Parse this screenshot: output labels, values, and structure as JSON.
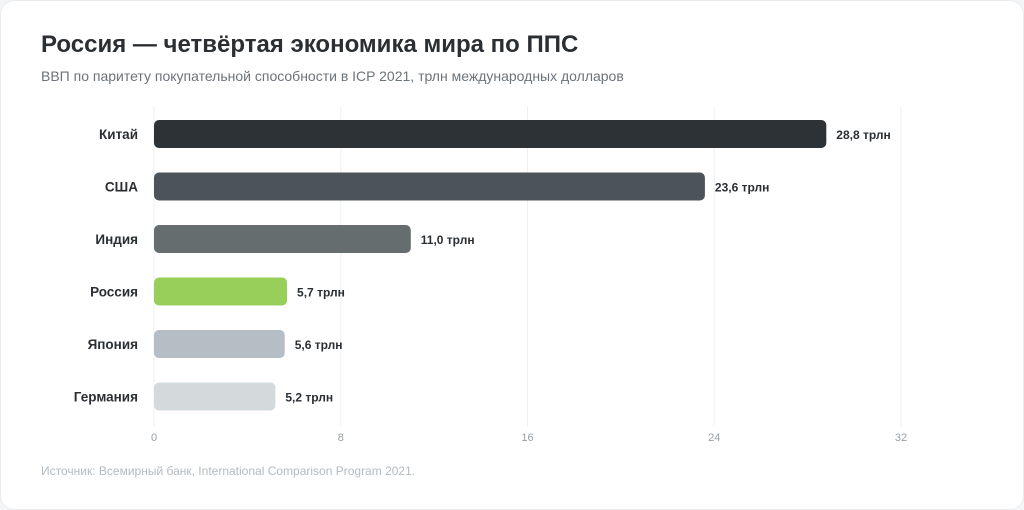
{
  "header": {
    "title": "Россия — четвёртая экономика мира по ППС",
    "subtitle": "ВВП по паритету покупательной способности в ICP 2021, трлн международных долларов"
  },
  "footer": {
    "source": "Источник: Всемирный банк, International Comparison Program 2021."
  },
  "colors": {
    "Китай": "#2c3235",
    "США": "#4d5459",
    "Индия": "#656d6f",
    "Россия": "#97cf5a",
    "Япония": "#b5bec4",
    "Германия": "#d4d9dc",
    "grid": "#edf0f2",
    "tick_label": "#98a0a7",
    "category_label": "#2b2f33",
    "value_label": "#2b2f33"
  },
  "chart_data": {
    "type": "bar",
    "orientation": "horizontal",
    "categories": [
      "Китай",
      "США",
      "Индия",
      "Россия",
      "Япония",
      "Германия"
    ],
    "values": [
      28.8,
      23.6,
      11.0,
      5.7,
      5.6,
      5.2
    ],
    "value_labels": [
      "28,8 трлн",
      "23,6 трлн",
      "11,0 трлн",
      "5,7 трлн",
      "5,6 трлн",
      "5,2 трлн"
    ],
    "xlim": [
      0,
      32
    ],
    "xticks": [
      0,
      8,
      16,
      24,
      32
    ],
    "grid": true
  }
}
